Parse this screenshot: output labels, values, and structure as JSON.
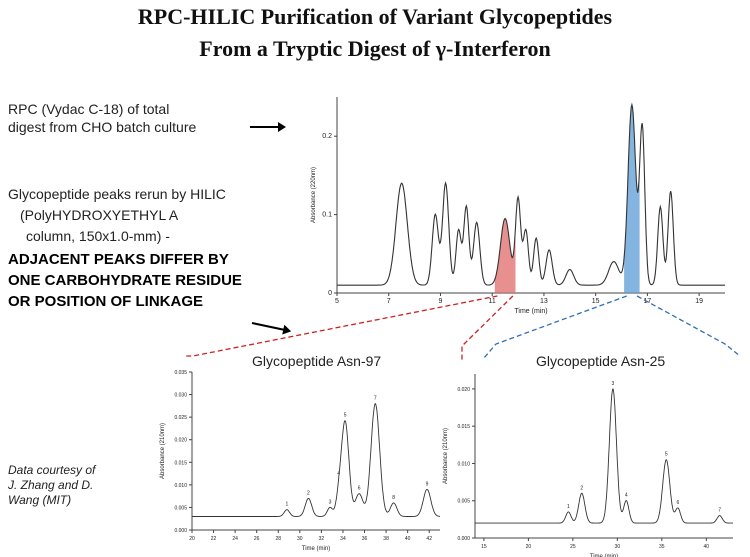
{
  "title": {
    "line1": "RPC-HILIC Purification of Variant Glycopeptides",
    "line2": "From a Tryptic Digest of γ-Interferon"
  },
  "notes": {
    "rpc_line1": "RPC (Vydac C-18) of total",
    "rpc_line2": "digest from CHO batch culture",
    "hilic_line1": "Glycopeptide peaks rerun by HILIC",
    "hilic_line2": "(PolyHYDROXYETHYL A",
    "hilic_line3": "column, 150x1.0-mm) -",
    "bold_line1": "ADJACENT PEAKS DIFFER BY",
    "bold_line2": "ONE CARBOHYDRATE RESIDUE",
    "bold_line3": "OR POSITION OF LINKAGE",
    "courtesy_line1": "Data courtesy of",
    "courtesy_line2": "J. Zhang and D.",
    "courtesy_line3": "Wang (MIT)"
  },
  "colors": {
    "red_highlight": "#e06a6a",
    "blue_highlight": "#5b9bd5",
    "red_dash": "#cc2222",
    "blue_dash": "#2f6fb5",
    "trace": "#333333"
  },
  "chart_data": [
    {
      "type": "line",
      "name_printed": "",
      "xlabel": "Time (min)",
      "ylabel": "Absorbance (220nm)",
      "x_ticks": [
        "5",
        "7",
        "9",
        "11",
        "13",
        "15",
        "17",
        "19"
      ],
      "y_ticks": [
        "0",
        "0.1",
        "0.2"
      ],
      "xlim": [
        5,
        20
      ],
      "ylim": [
        0,
        0.25
      ],
      "peaks": [
        {
          "x": 7.5,
          "h": 0.13,
          "w": 0.22
        },
        {
          "x": 8.8,
          "h": 0.09,
          "w": 0.12
        },
        {
          "x": 9.2,
          "h": 0.13,
          "w": 0.12
        },
        {
          "x": 9.7,
          "h": 0.07,
          "w": 0.1
        },
        {
          "x": 10.0,
          "h": 0.1,
          "w": 0.1
        },
        {
          "x": 10.4,
          "h": 0.08,
          "w": 0.12
        },
        {
          "x": 11.5,
          "h": 0.085,
          "w": 0.18
        },
        {
          "x": 12.0,
          "h": 0.11,
          "w": 0.1
        },
        {
          "x": 12.3,
          "h": 0.07,
          "w": 0.1
        },
        {
          "x": 12.7,
          "h": 0.06,
          "w": 0.1
        },
        {
          "x": 13.2,
          "h": 0.045,
          "w": 0.12
        },
        {
          "x": 14.0,
          "h": 0.02,
          "w": 0.15
        },
        {
          "x": 15.7,
          "h": 0.03,
          "w": 0.2
        },
        {
          "x": 16.4,
          "h": 0.23,
          "w": 0.15
        },
        {
          "x": 16.8,
          "h": 0.2,
          "w": 0.1
        },
        {
          "x": 17.5,
          "h": 0.1,
          "w": 0.1
        },
        {
          "x": 17.9,
          "h": 0.12,
          "w": 0.1
        }
      ],
      "baseline": 0.01,
      "highlights": [
        {
          "from": 11.1,
          "to": 11.9,
          "color": "red"
        },
        {
          "from": 16.1,
          "to": 16.7,
          "color": "blue"
        }
      ]
    },
    {
      "type": "line",
      "title": "Glycopeptide Asn-97",
      "xlabel": "Time (min)",
      "ylabel": "Absorbance (210nm)",
      "x_ticks": [
        "20",
        "22",
        "24",
        "26",
        "28",
        "30",
        "32",
        "34",
        "36",
        "38",
        "40",
        "42"
      ],
      "y_ticks": [
        "0.000",
        "0.005",
        "0.010",
        "0.015",
        "0.020",
        "0.025",
        "0.030",
        "0.035"
      ],
      "xlim": [
        20,
        43
      ],
      "ylim": [
        0,
        0.035
      ],
      "peaks": [
        {
          "x": 28.8,
          "h": 0.0015,
          "w": 0.25
        },
        {
          "x": 30.8,
          "h": 0.004,
          "w": 0.3
        },
        {
          "x": 32.8,
          "h": 0.002,
          "w": 0.25
        },
        {
          "x": 33.6,
          "h": 0.0035,
          "w": 0.25
        },
        {
          "x": 34.2,
          "h": 0.021,
          "w": 0.35
        },
        {
          "x": 35.5,
          "h": 0.005,
          "w": 0.35
        },
        {
          "x": 37.0,
          "h": 0.025,
          "w": 0.4
        },
        {
          "x": 38.7,
          "h": 0.003,
          "w": 0.3
        },
        {
          "x": 41.8,
          "h": 0.006,
          "w": 0.35
        }
      ],
      "baseline": 0.003,
      "peak_labels": [
        "1",
        "2",
        "3",
        "4",
        "5",
        "6",
        "7",
        "8",
        "9"
      ]
    },
    {
      "type": "line",
      "title": "Glycopeptide Asn-25",
      "xlabel": "Time (min)",
      "ylabel": "Absorbance (210nm)",
      "x_ticks": [
        "15",
        "20",
        "25",
        "30",
        "35",
        "40"
      ],
      "y_ticks": [
        "0.000",
        "0.005",
        "0.010",
        "0.015",
        "0.020"
      ],
      "xlim": [
        14,
        43
      ],
      "ylim": [
        0,
        0.022
      ],
      "peaks": [
        {
          "x": 24.5,
          "h": 0.0015,
          "w": 0.3
        },
        {
          "x": 26.0,
          "h": 0.004,
          "w": 0.35
        },
        {
          "x": 29.5,
          "h": 0.018,
          "w": 0.4
        },
        {
          "x": 31.0,
          "h": 0.003,
          "w": 0.3
        },
        {
          "x": 35.5,
          "h": 0.0085,
          "w": 0.4
        },
        {
          "x": 36.8,
          "h": 0.002,
          "w": 0.3
        },
        {
          "x": 41.5,
          "h": 0.001,
          "w": 0.3
        }
      ],
      "baseline": 0.002,
      "peak_labels": [
        "1",
        "2",
        "3",
        "4",
        "5",
        "6",
        "7"
      ]
    }
  ]
}
